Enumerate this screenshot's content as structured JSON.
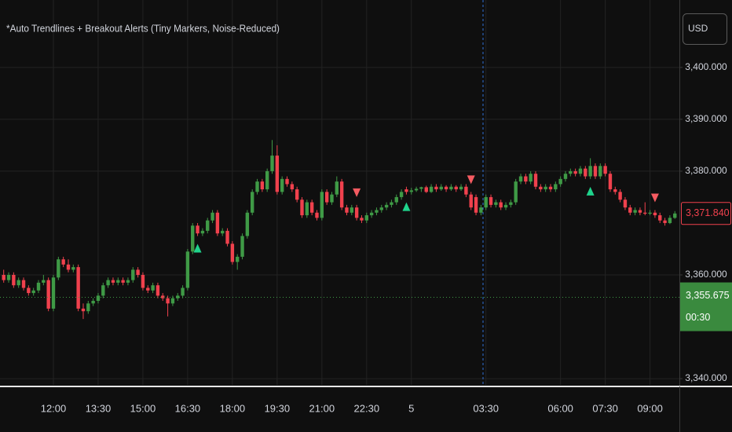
{
  "chart_data": {
    "type": "candlestick",
    "title": "*Auto Trendlines + Breakout Alerts (Tiny Markers, Noise-Reduced)",
    "currency": "USD",
    "up_color": "#3f9a46",
    "down_color": "#f0414d",
    "signal_up_color": "#1fd38c",
    "signal_down_color": "#f55b61",
    "grid": true,
    "ylim": [
      3338.8,
      3413.0
    ],
    "yticks": [
      {
        "value": 3340,
        "label": "3,340.000"
      },
      {
        "value": 3360,
        "label": "3,360.000"
      },
      {
        "value": 3380,
        "label": "3,380.000"
      },
      {
        "value": 3390,
        "label": "3,390.000"
      },
      {
        "value": 3400,
        "label": "3,400.000"
      }
    ],
    "last_price": {
      "value": 3371.84,
      "label": "3,371.840"
    },
    "reference_price": {
      "value": 3355.675,
      "label": "3,355.675",
      "countdown": "00:30"
    },
    "categories": [
      null,
      null,
      null,
      null,
      null,
      null,
      null,
      null,
      null,
      null,
      "12:00",
      null,
      null,
      null,
      null,
      null,
      null,
      null,
      null,
      "13:30",
      null,
      null,
      null,
      null,
      null,
      null,
      null,
      null,
      "15:00",
      null,
      null,
      null,
      null,
      null,
      null,
      null,
      null,
      "16:30",
      null,
      null,
      null,
      null,
      null,
      null,
      null,
      null,
      "18:00",
      null,
      null,
      null,
      null,
      null,
      null,
      null,
      null,
      "19:30",
      null,
      null,
      null,
      null,
      null,
      null,
      null,
      null,
      "21:00",
      null,
      null,
      null,
      null,
      null,
      null,
      null,
      null,
      "22:30",
      null,
      null,
      null,
      null,
      null,
      null,
      null,
      null,
      "5",
      null,
      null,
      null,
      null,
      null,
      null,
      null,
      null,
      null,
      null,
      null,
      null,
      null,
      null,
      "03:30",
      null,
      null,
      null,
      null,
      null,
      null,
      null,
      null,
      null,
      null,
      null,
      null,
      null,
      null,
      "06:00",
      null,
      null,
      null,
      null,
      null,
      null,
      null,
      null,
      "07:30",
      null,
      null,
      null,
      null,
      null,
      null,
      null,
      null,
      "09:00",
      null,
      null,
      null,
      null,
      null
    ],
    "ohlc": [
      [
        3360,
        3361,
        3358.5,
        3359
      ],
      [
        3359,
        3360.5,
        3358.5,
        3360
      ],
      [
        3360,
        3360.5,
        3357.5,
        3358
      ],
      [
        3358,
        3359.5,
        3357.5,
        3359
      ],
      [
        3359,
        3359.5,
        3357,
        3357.5
      ],
      [
        3357.5,
        3358,
        3356,
        3356.5
      ],
      [
        3356.5,
        3357.5,
        3356,
        3357
      ],
      [
        3357,
        3359,
        3356.5,
        3358.5
      ],
      [
        3358.5,
        3360,
        3358,
        3359
      ],
      [
        3359,
        3359.5,
        3353,
        3353.5
      ],
      [
        3353.5,
        3360,
        3353,
        3359.5
      ],
      [
        3359.5,
        3363.5,
        3359,
        3363
      ],
      [
        3363,
        3363.5,
        3361.5,
        3362
      ],
      [
        3362,
        3363,
        3360.5,
        3361
      ],
      [
        3361,
        3362,
        3360.5,
        3361.5
      ],
      [
        3361.5,
        3362,
        3353,
        3353.5
      ],
      [
        3353.5,
        3354.5,
        3351.5,
        3353
      ],
      [
        3353,
        3355,
        3352.5,
        3354.5
      ],
      [
        3354.5,
        3355.5,
        3354,
        3355
      ],
      [
        3355,
        3356.5,
        3354.5,
        3356
      ],
      [
        3356,
        3358.5,
        3355.5,
        3358
      ],
      [
        3358,
        3359.5,
        3357.5,
        3359
      ],
      [
        3359,
        3359.5,
        3358,
        3358.5
      ],
      [
        3358.5,
        3359.5,
        3358,
        3359
      ],
      [
        3359,
        3359.5,
        3358,
        3358.5
      ],
      [
        3358.5,
        3359.5,
        3358,
        3359
      ],
      [
        3359,
        3361.5,
        3358.5,
        3361
      ],
      [
        3361,
        3361.5,
        3359.5,
        3360
      ],
      [
        3360,
        3360.5,
        3357,
        3357.5
      ],
      [
        3357.5,
        3358,
        3356.5,
        3357
      ],
      [
        3357,
        3358.5,
        3356.5,
        3358
      ],
      [
        3358,
        3358.5,
        3355.5,
        3356
      ],
      [
        3356,
        3356.5,
        3355,
        3355.5
      ],
      [
        3355.5,
        3356,
        3352,
        3354.5
      ],
      [
        3354.5,
        3356,
        3354,
        3355.5
      ],
      [
        3355.5,
        3356.5,
        3355,
        3356
      ],
      [
        3356,
        3358,
        3355.5,
        3357.5
      ],
      [
        3357.5,
        3365,
        3357,
        3364.5
      ],
      [
        3364.5,
        3370,
        3364,
        3369.5
      ],
      [
        3369.5,
        3370,
        3367.5,
        3368
      ],
      [
        3368,
        3369,
        3367.5,
        3368.5
      ],
      [
        3368.5,
        3371,
        3368,
        3370.5
      ],
      [
        3370.5,
        3372.5,
        3370,
        3372
      ],
      [
        3372,
        3372.5,
        3367.5,
        3368
      ],
      [
        3368,
        3369,
        3367.5,
        3368.5
      ],
      [
        3368.5,
        3369,
        3365.5,
        3366
      ],
      [
        3366,
        3366.5,
        3362,
        3362.5
      ],
      [
        3362.5,
        3364,
        3361,
        3363.5
      ],
      [
        3363.5,
        3368,
        3363,
        3367.5
      ],
      [
        3367.5,
        3372.5,
        3367,
        3372
      ],
      [
        3372,
        3376.5,
        3371.5,
        3376
      ],
      [
        3376,
        3378.5,
        3375.5,
        3378
      ],
      [
        3378,
        3378.5,
        3376,
        3376.5
      ],
      [
        3376.5,
        3380.5,
        3376,
        3380
      ],
      [
        3380,
        3386,
        3379.5,
        3383
      ],
      [
        3383,
        3385,
        3375.5,
        3376
      ],
      [
        3376,
        3379,
        3375.5,
        3378.5
      ],
      [
        3378.5,
        3379,
        3377,
        3377.5
      ],
      [
        3377.5,
        3378,
        3376,
        3376.5
      ],
      [
        3376.5,
        3377,
        3374,
        3374.5
      ],
      [
        3374.5,
        3375,
        3371,
        3371.5
      ],
      [
        3371.5,
        3374.5,
        3371,
        3374
      ],
      [
        3374,
        3374.5,
        3371.5,
        3372
      ],
      [
        3372,
        3372.5,
        3370.5,
        3371
      ],
      [
        3371,
        3376.5,
        3370.5,
        3376
      ],
      [
        3376,
        3376.5,
        3373.5,
        3374
      ],
      [
        3374,
        3376,
        3373.5,
        3375.5
      ],
      [
        3375.5,
        3379,
        3375,
        3378
      ],
      [
        3378,
        3378.5,
        3372.5,
        3373
      ],
      [
        3373,
        3373.5,
        3371.5,
        3372
      ],
      [
        3372,
        3373.5,
        3371.5,
        3373
      ],
      [
        3373,
        3373.5,
        3370.5,
        3371
      ],
      [
        3371,
        3371.5,
        3370,
        3370.5
      ],
      [
        3370.5,
        3372,
        3370,
        3371.5
      ],
      [
        3371.5,
        3372.5,
        3371,
        3372
      ],
      [
        3372,
        3373,
        3371.5,
        3372.5
      ],
      [
        3372.5,
        3373.5,
        3372,
        3373
      ],
      [
        3373,
        3374,
        3372.5,
        3373.5
      ],
      [
        3373.5,
        3374.5,
        3373,
        3374
      ],
      [
        3374,
        3375.5,
        3373.5,
        3375
      ],
      [
        3375,
        3376.5,
        3374.5,
        3376
      ],
      [
        3376.5,
        3377,
        3375.5,
        3376
      ],
      [
        3376,
        3376.8,
        3375.5,
        3376.3
      ],
      [
        3376.3,
        3377,
        3376,
        3376.6
      ],
      [
        3376.6,
        3377,
        3376,
        3376.9
      ],
      [
        3376.9,
        3377.2,
        3375.8,
        3376
      ],
      [
        3376,
        3377.5,
        3375.8,
        3377
      ],
      [
        3377,
        3377.5,
        3376,
        3376.5
      ],
      [
        3376.5,
        3377.5,
        3376.2,
        3377
      ],
      [
        3377,
        3377.3,
        3376,
        3376.5
      ],
      [
        3376.5,
        3377.5,
        3376.2,
        3377
      ],
      [
        3377,
        3377.3,
        3376,
        3376.5
      ],
      [
        3376.5,
        3377.5,
        3376.2,
        3377
      ],
      [
        3377,
        3377.5,
        3375,
        3375.5
      ],
      [
        3375.5,
        3376,
        3372.5,
        3373
      ],
      [
        3375,
        3375.5,
        3371.5,
        3372
      ],
      [
        3372,
        3373.5,
        3371.5,
        3373
      ],
      [
        3373,
        3375.5,
        3372.5,
        3375
      ],
      [
        3375,
        3375.5,
        3373,
        3373.5
      ],
      [
        3373.5,
        3374.5,
        3373,
        3374
      ],
      [
        3374,
        3374.5,
        3372.5,
        3373
      ],
      [
        3373,
        3374,
        3372.5,
        3373.5
      ],
      [
        3373.5,
        3374.5,
        3373,
        3374
      ],
      [
        3374,
        3378.5,
        3373.5,
        3378
      ],
      [
        3378,
        3379.5,
        3377.5,
        3379
      ],
      [
        3379,
        3379.5,
        3377.5,
        3378
      ],
      [
        3378,
        3380,
        3377.5,
        3379.5
      ],
      [
        3379.5,
        3380,
        3376.5,
        3377
      ],
      [
        3377,
        3377.5,
        3376,
        3376.5
      ],
      [
        3376.5,
        3377.5,
        3376,
        3377
      ],
      [
        3377,
        3377.5,
        3376,
        3376.5
      ],
      [
        3376.5,
        3378,
        3376,
        3377.5
      ],
      [
        3377.5,
        3379,
        3377,
        3378.5
      ],
      [
        3378.5,
        3380,
        3378,
        3379.5
      ],
      [
        3379.5,
        3380.5,
        3379,
        3380
      ],
      [
        3380,
        3380.5,
        3379,
        3379.5
      ],
      [
        3379.5,
        3381,
        3379,
        3380.5
      ],
      [
        3380.5,
        3381,
        3378.5,
        3379
      ],
      [
        3379,
        3382.5,
        3378.5,
        3381
      ],
      [
        3381,
        3381.5,
        3378.5,
        3379
      ],
      [
        3379,
        3381.5,
        3378.5,
        3381
      ],
      [
        3381,
        3381.5,
        3379,
        3379.5
      ],
      [
        3379.5,
        3380,
        3376,
        3376.5
      ],
      [
        3376.5,
        3377,
        3375.5,
        3376
      ],
      [
        3376,
        3376.5,
        3374,
        3374.5
      ],
      [
        3374.5,
        3375,
        3372.5,
        3373
      ],
      [
        3373,
        3373.5,
        3371.5,
        3372
      ],
      [
        3372,
        3373,
        3371.5,
        3372.5
      ],
      [
        3372.5,
        3373,
        3371.5,
        3372
      ],
      [
        3372,
        3374,
        3371.5,
        3371.8
      ],
      [
        3371.8,
        3372.5,
        3371.5,
        3372
      ],
      [
        3372,
        3372.5,
        3371,
        3371.5
      ],
      [
        3371.5,
        3372,
        3370,
        3370.5
      ],
      [
        3370.5,
        3371,
        3369.5,
        3370
      ],
      [
        3370,
        3371.5,
        3369.8,
        3371
      ],
      [
        3371,
        3372.3,
        3370.8,
        3371.84
      ]
    ],
    "signals": [
      {
        "index": 39,
        "direction": "up"
      },
      {
        "index": 71,
        "direction": "down"
      },
      {
        "index": 81,
        "direction": "up"
      },
      {
        "index": 94,
        "direction": "down"
      },
      {
        "index": 118,
        "direction": "up"
      },
      {
        "index": 131,
        "direction": "down"
      }
    ]
  }
}
